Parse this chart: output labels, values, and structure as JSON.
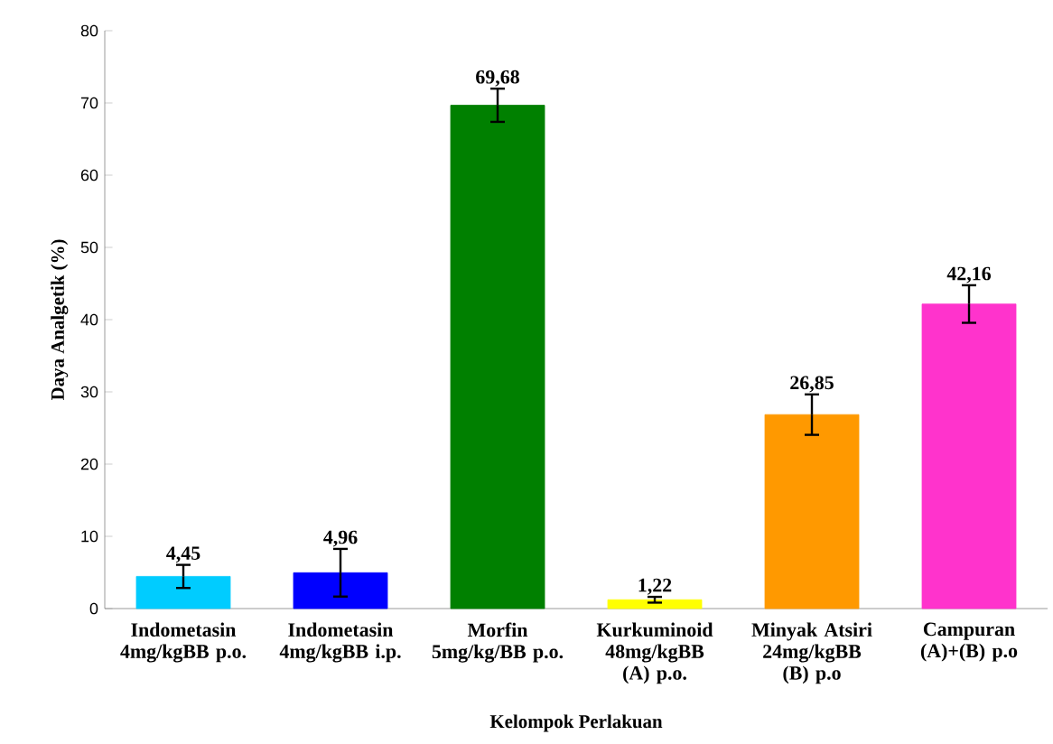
{
  "chart_data": {
    "type": "bar",
    "xlabel": "Kelompok Perlakuan",
    "ylabel": "Daya Analgetik (%)",
    "categories": [
      "Indometasin 4mg/kgBB p.o.",
      "Indometasin 4mg/kgBB i.p.",
      "Morfin 5mg/kg/BB p.o.",
      "Kurkuminoid 48mg/kgBB (A) p.o.",
      "Minyak Atsiri 24mg/kgBB (B) p.o",
      "Campuran (A)+(B) p.o"
    ],
    "values": [
      4.45,
      4.96,
      69.68,
      1.22,
      26.85,
      42.16
    ],
    "value_labels": [
      "4,45",
      "4,96",
      "69,68",
      "1,22",
      "26,85",
      "42,16"
    ],
    "errors": [
      1.6,
      3.3,
      2.3,
      0.4,
      2.8,
      2.6
    ],
    "colors": [
      "#00ccff",
      "#0000ff",
      "#008000",
      "#ffff00",
      "#ff9900",
      "#ff33cc"
    ],
    "ylim": [
      0,
      80
    ],
    "yticks": [
      0,
      10,
      20,
      30,
      40,
      50,
      60,
      70,
      80
    ],
    "grid": false
  }
}
